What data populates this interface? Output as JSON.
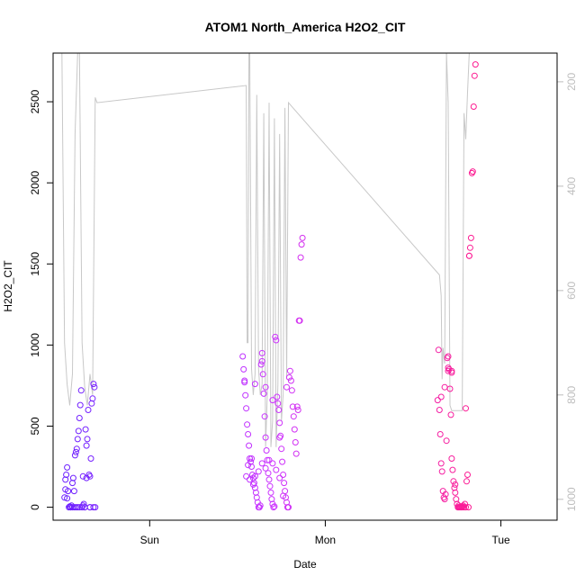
{
  "chart_data": {
    "type": "scatter",
    "title": "ATOM1 North_America H2O2_CIT",
    "xlabel": "Date",
    "ylabel": "H2O2_CIT",
    "x_unit": "days from Saturday 00:00 (tick labels shown as weekday names)",
    "xlim": [
      0.45,
      3.32
    ],
    "ylim": [
      -80,
      2800
    ],
    "y_ticks": [
      0,
      500,
      1000,
      1500,
      2000,
      2500
    ],
    "x_ticks": [
      {
        "value": 1,
        "label": "Sun"
      },
      {
        "value": 2,
        "label": "Mon"
      },
      {
        "value": 3,
        "label": "Tue"
      }
    ],
    "right_axis": {
      "label": "",
      "reversed": true,
      "ticks": [
        200,
        400,
        600,
        800,
        1000
      ],
      "range": [
        145,
        1040
      ],
      "color": "#bdbdbd"
    },
    "marker": "open-circle",
    "color_gradient": [
      "#6a1fff",
      "#cc33ff",
      "#ff1a8c"
    ],
    "series": [
      {
        "kind": "points",
        "points": [
          [
            0.515,
            60
          ],
          [
            0.52,
            110
          ],
          [
            0.52,
            170
          ],
          [
            0.525,
            200
          ],
          [
            0.53,
            245
          ],
          [
            0.535,
            100
          ],
          [
            0.54,
            0
          ],
          [
            0.545,
            5
          ],
          [
            0.55,
            0
          ],
          [
            0.555,
            10
          ],
          [
            0.56,
            150
          ],
          [
            0.565,
            180
          ],
          [
            0.57,
            0
          ],
          [
            0.575,
            320
          ],
          [
            0.58,
            340
          ],
          [
            0.585,
            360
          ],
          [
            0.59,
            420
          ],
          [
            0.595,
            470
          ],
          [
            0.6,
            550
          ],
          [
            0.605,
            630
          ],
          [
            0.61,
            720
          ],
          [
            0.615,
            0
          ],
          [
            0.62,
            10
          ],
          [
            0.625,
            20
          ],
          [
            0.63,
            0
          ],
          [
            0.635,
            480
          ],
          [
            0.64,
            380
          ],
          [
            0.645,
            420
          ],
          [
            0.65,
            600
          ],
          [
            0.655,
            200
          ],
          [
            0.66,
            190
          ],
          [
            0.665,
            300
          ],
          [
            0.67,
            640
          ],
          [
            0.675,
            670
          ],
          [
            0.68,
            760
          ],
          [
            0.685,
            740
          ],
          [
            0.69,
            0
          ],
          [
            0.56,
            0
          ],
          [
            0.58,
            0
          ],
          [
            0.6,
            0
          ],
          [
            0.62,
            190
          ],
          [
            0.64,
            180
          ],
          [
            0.66,
            0
          ],
          [
            0.53,
            55
          ],
          [
            0.57,
            100
          ],
          [
            0.59,
            0
          ],
          [
            0.63,
            0
          ],
          [
            0.66,
            0
          ],
          [
            0.68,
            0
          ],
          [
            0.55,
            0
          ]
        ]
      },
      {
        "kind": "points",
        "points": [
          [
            1.53,
            930
          ],
          [
            1.535,
            850
          ],
          [
            1.54,
            770
          ],
          [
            1.545,
            690
          ],
          [
            1.55,
            610
          ],
          [
            1.555,
            510
          ],
          [
            1.56,
            450
          ],
          [
            1.565,
            380
          ],
          [
            1.57,
            300
          ],
          [
            1.575,
            280
          ],
          [
            1.58,
            250
          ],
          [
            1.585,
            200
          ],
          [
            1.59,
            180
          ],
          [
            1.595,
            150
          ],
          [
            1.6,
            120
          ],
          [
            1.605,
            90
          ],
          [
            1.61,
            60
          ],
          [
            1.615,
            30
          ],
          [
            1.62,
            0
          ],
          [
            1.625,
            0
          ],
          [
            1.63,
            10
          ],
          [
            1.635,
            880
          ],
          [
            1.64,
            950
          ],
          [
            1.645,
            820
          ],
          [
            1.65,
            700
          ],
          [
            1.655,
            560
          ],
          [
            1.66,
            430
          ],
          [
            1.665,
            350
          ],
          [
            1.67,
            290
          ],
          [
            1.675,
            210
          ],
          [
            1.68,
            170
          ],
          [
            1.685,
            130
          ],
          [
            1.69,
            90
          ],
          [
            1.695,
            50
          ],
          [
            1.7,
            20
          ],
          [
            1.705,
            0
          ],
          [
            1.71,
            5
          ],
          [
            1.715,
            1050
          ],
          [
            1.72,
            1030
          ],
          [
            1.725,
            680
          ],
          [
            1.73,
            640
          ],
          [
            1.735,
            600
          ],
          [
            1.74,
            520
          ],
          [
            1.745,
            440
          ],
          [
            1.75,
            360
          ],
          [
            1.755,
            280
          ],
          [
            1.76,
            200
          ],
          [
            1.765,
            150
          ],
          [
            1.77,
            100
          ],
          [
            1.775,
            60
          ],
          [
            1.78,
            30
          ],
          [
            1.785,
            0
          ],
          [
            1.79,
            0
          ],
          [
            1.795,
            800
          ],
          [
            1.8,
            840
          ],
          [
            1.805,
            780
          ],
          [
            1.81,
            720
          ],
          [
            1.815,
            620
          ],
          [
            1.82,
            560
          ],
          [
            1.825,
            480
          ],
          [
            1.83,
            400
          ],
          [
            1.835,
            330
          ],
          [
            1.84,
            620
          ],
          [
            1.845,
            600
          ],
          [
            1.85,
            1150
          ],
          [
            1.855,
            1150
          ],
          [
            1.86,
            1540
          ],
          [
            1.865,
            1620
          ],
          [
            1.87,
            1660
          ],
          [
            1.56,
            260
          ],
          [
            1.58,
            300
          ],
          [
            1.6,
            190
          ],
          [
            1.62,
            220
          ],
          [
            1.64,
            270
          ],
          [
            1.66,
            240
          ],
          [
            1.68,
            290
          ],
          [
            1.7,
            270
          ],
          [
            1.72,
            230
          ],
          [
            1.74,
            180
          ],
          [
            1.76,
            70
          ],
          [
            1.54,
            780
          ],
          [
            1.6,
            760
          ],
          [
            1.64,
            900
          ],
          [
            1.66,
            740
          ],
          [
            1.7,
            660
          ],
          [
            1.74,
            430
          ],
          [
            1.78,
            740
          ],
          [
            1.55,
            190
          ],
          [
            1.57,
            170
          ],
          [
            1.59,
            140
          ]
        ]
      },
      {
        "kind": "points",
        "points": [
          [
            2.64,
            660
          ],
          [
            2.645,
            970
          ],
          [
            2.65,
            600
          ],
          [
            2.655,
            450
          ],
          [
            2.66,
            270
          ],
          [
            2.665,
            220
          ],
          [
            2.67,
            100
          ],
          [
            2.675,
            60
          ],
          [
            2.68,
            50
          ],
          [
            2.685,
            80
          ],
          [
            2.69,
            410
          ],
          [
            2.695,
            920
          ],
          [
            2.7,
            860
          ],
          [
            2.705,
            850
          ],
          [
            2.71,
            730
          ],
          [
            2.715,
            570
          ],
          [
            2.72,
            300
          ],
          [
            2.725,
            230
          ],
          [
            2.73,
            160
          ],
          [
            2.735,
            120
          ],
          [
            2.74,
            90
          ],
          [
            2.745,
            50
          ],
          [
            2.75,
            20
          ],
          [
            2.755,
            0
          ],
          [
            2.76,
            0
          ],
          [
            2.765,
            0
          ],
          [
            2.77,
            0
          ],
          [
            2.775,
            0
          ],
          [
            2.78,
            0
          ],
          [
            2.785,
            10
          ],
          [
            2.79,
            0
          ],
          [
            2.795,
            20
          ],
          [
            2.8,
            610
          ],
          [
            2.805,
            160
          ],
          [
            2.81,
            200
          ],
          [
            2.815,
            0
          ],
          [
            2.82,
            1550
          ],
          [
            2.825,
            1600
          ],
          [
            2.83,
            1660
          ],
          [
            2.835,
            2060
          ],
          [
            2.84,
            2070
          ],
          [
            2.845,
            2470
          ],
          [
            2.85,
            2660
          ],
          [
            2.855,
            2730
          ],
          [
            2.7,
            840
          ],
          [
            2.72,
            830
          ],
          [
            2.66,
            680
          ],
          [
            2.68,
            740
          ],
          [
            2.74,
            140
          ],
          [
            2.76,
            10
          ],
          [
            2.78,
            5
          ],
          [
            2.8,
            0
          ],
          [
            2.82,
            1550
          ],
          [
            2.7,
            930
          ],
          [
            2.72,
            840
          ]
        ]
      },
      {
        "kind": "pressure-line",
        "axis": "right",
        "points": [
          [
            0.45,
            145
          ],
          [
            0.5,
            145
          ],
          [
            0.515,
            700
          ],
          [
            0.53,
            780
          ],
          [
            0.545,
            820
          ],
          [
            0.56,
            760
          ],
          [
            0.575,
            300
          ],
          [
            0.59,
            145
          ],
          [
            0.6,
            145
          ],
          [
            0.615,
            700
          ],
          [
            0.63,
            785
          ],
          [
            0.645,
            820
          ],
          [
            0.66,
            760
          ],
          [
            0.675,
            800
          ],
          [
            0.69,
            230
          ],
          [
            0.7,
            240
          ],
          [
            1.55,
            207
          ],
          [
            1.555,
            700
          ],
          [
            1.56,
            700
          ],
          [
            1.565,
            145
          ],
          [
            1.57,
            145
          ],
          [
            1.58,
            750
          ],
          [
            1.59,
            800
          ],
          [
            1.6,
            760
          ],
          [
            1.61,
            225
          ],
          [
            1.62,
            750
          ],
          [
            1.63,
            800
          ],
          [
            1.64,
            780
          ],
          [
            1.65,
            260
          ],
          [
            1.66,
            900
          ],
          [
            1.67,
            800
          ],
          [
            1.68,
            240
          ],
          [
            1.69,
            900
          ],
          [
            1.7,
            850
          ],
          [
            1.71,
            270
          ],
          [
            1.72,
            900
          ],
          [
            1.73,
            780
          ],
          [
            1.74,
            300
          ],
          [
            1.75,
            850
          ],
          [
            1.76,
            800
          ],
          [
            1.77,
            250
          ],
          [
            1.78,
            770
          ],
          [
            1.79,
            240
          ],
          [
            2.65,
            570
          ],
          [
            2.66,
            610
          ],
          [
            2.665,
            770
          ],
          [
            2.67,
            710
          ],
          [
            2.68,
            740
          ],
          [
            2.69,
            145
          ],
          [
            2.7,
            240
          ],
          [
            2.71,
            820
          ],
          [
            2.72,
            830
          ],
          [
            2.73,
            830
          ],
          [
            2.74,
            830
          ],
          [
            2.75,
            830
          ],
          [
            2.76,
            830
          ],
          [
            2.77,
            830
          ],
          [
            2.78,
            830
          ],
          [
            2.79,
            260
          ],
          [
            2.8,
            310
          ],
          [
            2.81,
            220
          ],
          [
            2.82,
            145
          ],
          [
            2.83,
            145
          ],
          [
            2.84,
            145
          ]
        ]
      }
    ]
  }
}
